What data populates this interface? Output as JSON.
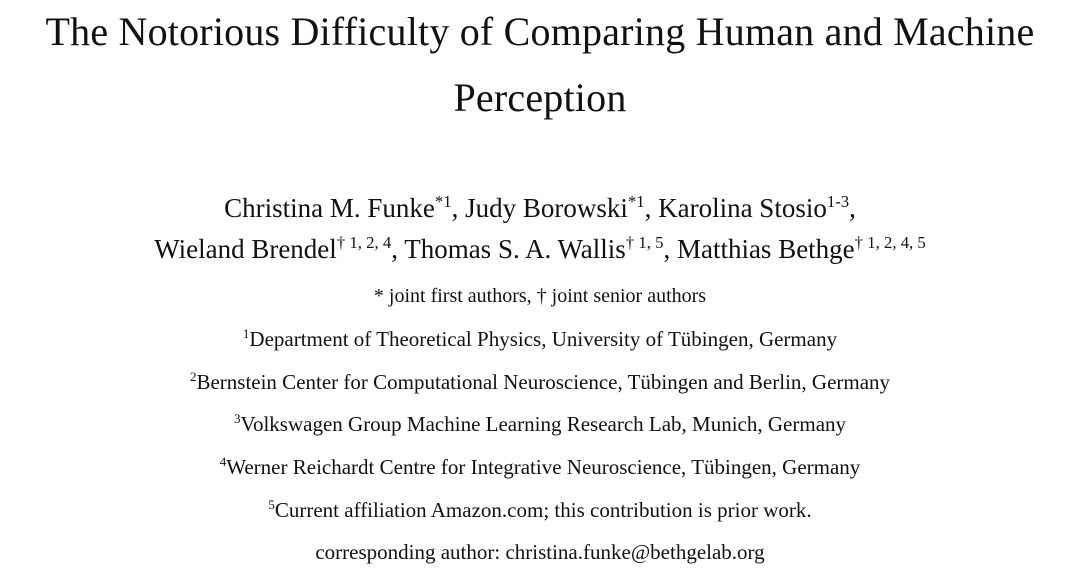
{
  "title": {
    "line1": "The Notorious Difficulty of Comparing Human and Machine",
    "line2": "Perception"
  },
  "authors": [
    {
      "name": "Christina M. Funke",
      "sup": "*1",
      "sep": ", "
    },
    {
      "name": "Judy Borowski",
      "sup": "*1",
      "sep": ", "
    },
    {
      "name": "Karolina Stosio",
      "sup": "1-3",
      "sep": ","
    },
    {
      "name": "Wieland Brendel",
      "sup": "† 1, 2, 4",
      "sep": ", "
    },
    {
      "name": "Thomas S. A. Wallis",
      "sup": "† 1, 5",
      "sep": ", "
    },
    {
      "name": "Matthias Bethge",
      "sup": "† 1, 2, 4, 5",
      "sep": ""
    }
  ],
  "author_note": "* joint first authors, † joint senior authors",
  "affiliations": [
    {
      "num": "1",
      "text": "Department of Theoretical Physics, University of Tübingen, Germany"
    },
    {
      "num": "2",
      "text": "Bernstein Center for Computational Neuroscience, Tübingen and Berlin, Germany"
    },
    {
      "num": "3",
      "text": "Volkswagen Group Machine Learning Research Lab, Munich, Germany"
    },
    {
      "num": "4",
      "text": "Werner Reichardt Centre for Integrative Neuroscience, Tübingen, Germany"
    },
    {
      "num": "5",
      "text": "Current affiliation Amazon.com; this contribution is prior work."
    }
  ],
  "corresponding": "corresponding author: christina.funke@bethgelab.org"
}
